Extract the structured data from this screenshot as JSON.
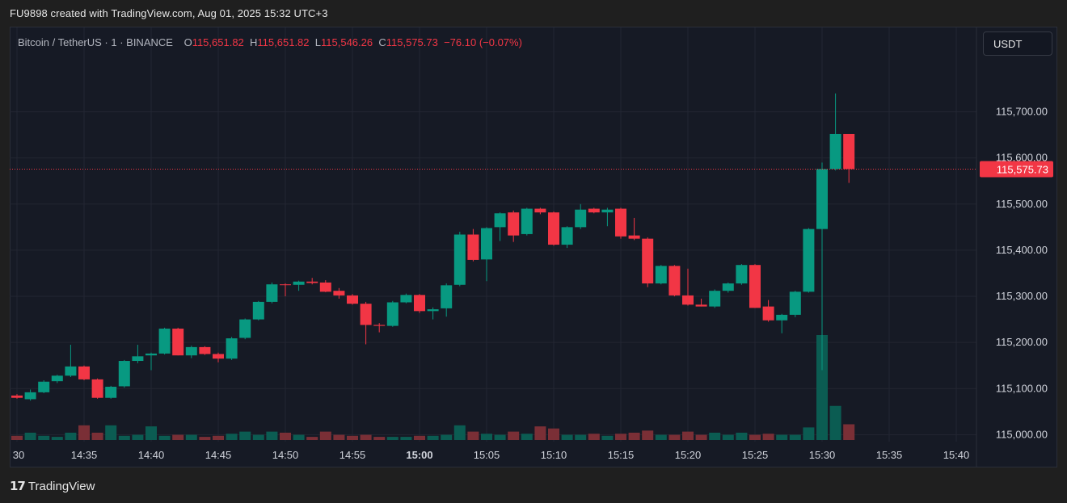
{
  "header": {
    "text": "FU9898 created with TradingView.com, Aug 01, 2025 15:32 UTC+3"
  },
  "legend": {
    "symbol": "Bitcoin / TetherUS · 1 · BINANCE",
    "open_label": "O",
    "open": "115,651.82",
    "high_label": "H",
    "high": "115,651.82",
    "low_label": "L",
    "low": "115,546.26",
    "close_label": "C",
    "close": "115,575.73",
    "change": "−76.10 (−0.07%)"
  },
  "currency_button": {
    "label": "USDT"
  },
  "price_label": {
    "value": "115,575.73"
  },
  "footer": {
    "brand": "TradingView"
  },
  "colors": {
    "up": "#089981",
    "down": "#f23645",
    "up_volume": "#0b5c52",
    "down_volume": "#7a2f36",
    "background": "#161a25",
    "grid": "#232632"
  },
  "chart_data": {
    "type": "candlestick",
    "symbol": "BTCUSDT",
    "interval": "1m",
    "y_ticks": [
      115000,
      115100,
      115200,
      115300,
      115400,
      115500,
      115600,
      115700
    ],
    "y_tick_labels": [
      "115,000.00",
      "115,100.00",
      "115,200.00",
      "115,300.00",
      "115,400.00",
      "115,500.00",
      "115,600.00",
      "115,700.00"
    ],
    "ylim": [
      114985,
      115820
    ],
    "x_ticks": [
      {
        "label": "30",
        "minute": 0,
        "bold": false
      },
      {
        "label": "14:35",
        "minute": 5,
        "bold": false
      },
      {
        "label": "14:40",
        "minute": 10,
        "bold": false
      },
      {
        "label": "14:45",
        "minute": 15,
        "bold": false
      },
      {
        "label": "14:50",
        "minute": 20,
        "bold": false
      },
      {
        "label": "14:55",
        "minute": 25,
        "bold": false
      },
      {
        "label": "15:00",
        "minute": 30,
        "bold": true
      },
      {
        "label": "15:05",
        "minute": 35,
        "bold": false
      },
      {
        "label": "15:10",
        "minute": 40,
        "bold": false
      },
      {
        "label": "15:15",
        "minute": 45,
        "bold": false
      },
      {
        "label": "15:20",
        "minute": 50,
        "bold": false
      },
      {
        "label": "15:25",
        "minute": 55,
        "bold": false
      },
      {
        "label": "15:30",
        "minute": 60,
        "bold": false
      },
      {
        "label": "15:35",
        "minute": 65,
        "bold": false
      },
      {
        "label": "15:40",
        "minute": 70,
        "bold": false
      }
    ],
    "xlim_minutes": [
      0,
      72
    ],
    "last_price": 115575.73,
    "volume_max": 200,
    "candles": [
      {
        "m": 0,
        "o": 115085,
        "h": 115088,
        "l": 115078,
        "c": 115080,
        "v": 8
      },
      {
        "m": 1,
        "o": 115077,
        "h": 115098,
        "l": 115074,
        "c": 115092,
        "v": 14
      },
      {
        "m": 2,
        "o": 115092,
        "h": 115118,
        "l": 115090,
        "c": 115115,
        "v": 8
      },
      {
        "m": 3,
        "o": 115116,
        "h": 115130,
        "l": 115112,
        "c": 115128,
        "v": 6
      },
      {
        "m": 4,
        "o": 115128,
        "h": 115195,
        "l": 115125,
        "c": 115148,
        "v": 14
      },
      {
        "m": 5,
        "o": 115148,
        "h": 115150,
        "l": 115118,
        "c": 115120,
        "v": 28
      },
      {
        "m": 6,
        "o": 115120,
        "h": 115122,
        "l": 115078,
        "c": 115080,
        "v": 14
      },
      {
        "m": 7,
        "o": 115080,
        "h": 115106,
        "l": 115078,
        "c": 115104,
        "v": 28
      },
      {
        "m": 8,
        "o": 115105,
        "h": 115162,
        "l": 115102,
        "c": 115160,
        "v": 8
      },
      {
        "m": 9,
        "o": 115160,
        "h": 115195,
        "l": 115155,
        "c": 115170,
        "v": 10
      },
      {
        "m": 10,
        "o": 115172,
        "h": 115178,
        "l": 115140,
        "c": 115176,
        "v": 26
      },
      {
        "m": 11,
        "o": 115176,
        "h": 115232,
        "l": 115174,
        "c": 115230,
        "v": 8
      },
      {
        "m": 12,
        "o": 115230,
        "h": 115232,
        "l": 115172,
        "c": 115172,
        "v": 10
      },
      {
        "m": 13,
        "o": 115172,
        "h": 115193,
        "l": 115166,
        "c": 115190,
        "v": 10
      },
      {
        "m": 14,
        "o": 115190,
        "h": 115192,
        "l": 115173,
        "c": 115175,
        "v": 6
      },
      {
        "m": 15,
        "o": 115175,
        "h": 115178,
        "l": 115157,
        "c": 115165,
        "v": 8
      },
      {
        "m": 16,
        "o": 115165,
        "h": 115212,
        "l": 115162,
        "c": 115209,
        "v": 12
      },
      {
        "m": 17,
        "o": 115210,
        "h": 115252,
        "l": 115207,
        "c": 115250,
        "v": 16
      },
      {
        "m": 18,
        "o": 115250,
        "h": 115290,
        "l": 115248,
        "c": 115288,
        "v": 10
      },
      {
        "m": 19,
        "o": 115288,
        "h": 115330,
        "l": 115285,
        "c": 115326,
        "v": 16
      },
      {
        "m": 20,
        "o": 115326,
        "h": 115328,
        "l": 115300,
        "c": 115325,
        "v": 14
      },
      {
        "m": 21,
        "o": 115325,
        "h": 115334,
        "l": 115312,
        "c": 115332,
        "v": 10
      },
      {
        "m": 22,
        "o": 115332,
        "h": 115340,
        "l": 115326,
        "c": 115329,
        "v": 6
      },
      {
        "m": 23,
        "o": 115330,
        "h": 115335,
        "l": 115309,
        "c": 115310,
        "v": 16
      },
      {
        "m": 24,
        "o": 115312,
        "h": 115318,
        "l": 115295,
        "c": 115302,
        "v": 10
      },
      {
        "m": 25,
        "o": 115302,
        "h": 115305,
        "l": 115282,
        "c": 115284,
        "v": 8
      },
      {
        "m": 26,
        "o": 115284,
        "h": 115288,
        "l": 115196,
        "c": 115238,
        "v": 10
      },
      {
        "m": 27,
        "o": 115238,
        "h": 115242,
        "l": 115222,
        "c": 115236,
        "v": 6
      },
      {
        "m": 28,
        "o": 115236,
        "h": 115290,
        "l": 115234,
        "c": 115287,
        "v": 6
      },
      {
        "m": 29,
        "o": 115287,
        "h": 115306,
        "l": 115285,
        "c": 115303,
        "v": 6
      },
      {
        "m": 30,
        "o": 115303,
        "h": 115305,
        "l": 115264,
        "c": 115268,
        "v": 8
      },
      {
        "m": 31,
        "o": 115268,
        "h": 115276,
        "l": 115250,
        "c": 115272,
        "v": 8
      },
      {
        "m": 32,
        "o": 115274,
        "h": 115328,
        "l": 115256,
        "c": 115324,
        "v": 10
      },
      {
        "m": 33,
        "o": 115325,
        "h": 115440,
        "l": 115322,
        "c": 115434,
        "v": 28
      },
      {
        "m": 34,
        "o": 115434,
        "h": 115446,
        "l": 115376,
        "c": 115379,
        "v": 16
      },
      {
        "m": 35,
        "o": 115380,
        "h": 115450,
        "l": 115333,
        "c": 115448,
        "v": 12
      },
      {
        "m": 36,
        "o": 115450,
        "h": 115482,
        "l": 115420,
        "c": 115480,
        "v": 10
      },
      {
        "m": 37,
        "o": 115482,
        "h": 115486,
        "l": 115418,
        "c": 115432,
        "v": 16
      },
      {
        "m": 38,
        "o": 115435,
        "h": 115492,
        "l": 115432,
        "c": 115490,
        "v": 12
      },
      {
        "m": 39,
        "o": 115490,
        "h": 115492,
        "l": 115478,
        "c": 115482,
        "v": 26
      },
      {
        "m": 40,
        "o": 115482,
        "h": 115484,
        "l": 115410,
        "c": 115412,
        "v": 22
      },
      {
        "m": 41,
        "o": 115412,
        "h": 115452,
        "l": 115405,
        "c": 115450,
        "v": 10
      },
      {
        "m": 42,
        "o": 115450,
        "h": 115500,
        "l": 115446,
        "c": 115488,
        "v": 10
      },
      {
        "m": 43,
        "o": 115490,
        "h": 115492,
        "l": 115480,
        "c": 115482,
        "v": 12
      },
      {
        "m": 44,
        "o": 115482,
        "h": 115492,
        "l": 115452,
        "c": 115488,
        "v": 8
      },
      {
        "m": 45,
        "o": 115490,
        "h": 115492,
        "l": 115425,
        "c": 115430,
        "v": 12
      },
      {
        "m": 46,
        "o": 115432,
        "h": 115470,
        "l": 115422,
        "c": 115425,
        "v": 14
      },
      {
        "m": 47,
        "o": 115425,
        "h": 115428,
        "l": 115320,
        "c": 115328,
        "v": 18
      },
      {
        "m": 48,
        "o": 115328,
        "h": 115368,
        "l": 115326,
        "c": 115366,
        "v": 10
      },
      {
        "m": 49,
        "o": 115366,
        "h": 115368,
        "l": 115300,
        "c": 115302,
        "v": 10
      },
      {
        "m": 50,
        "o": 115302,
        "h": 115360,
        "l": 115280,
        "c": 115282,
        "v": 16
      },
      {
        "m": 51,
        "o": 115282,
        "h": 115295,
        "l": 115278,
        "c": 115278,
        "v": 10
      },
      {
        "m": 52,
        "o": 115278,
        "h": 115315,
        "l": 115275,
        "c": 115312,
        "v": 14
      },
      {
        "m": 53,
        "o": 115312,
        "h": 115330,
        "l": 115308,
        "c": 115328,
        "v": 10
      },
      {
        "m": 54,
        "o": 115328,
        "h": 115370,
        "l": 115325,
        "c": 115368,
        "v": 14
      },
      {
        "m": 55,
        "o": 115368,
        "h": 115370,
        "l": 115275,
        "c": 115275,
        "v": 10
      },
      {
        "m": 56,
        "o": 115278,
        "h": 115292,
        "l": 115245,
        "c": 115248,
        "v": 12
      },
      {
        "m": 57,
        "o": 115248,
        "h": 115262,
        "l": 115220,
        "c": 115260,
        "v": 10
      },
      {
        "m": 58,
        "o": 115260,
        "h": 115312,
        "l": 115255,
        "c": 115310,
        "v": 10
      },
      {
        "m": 59,
        "o": 115310,
        "h": 115448,
        "l": 115308,
        "c": 115446,
        "v": 24
      },
      {
        "m": 60,
        "o": 115446,
        "h": 115590,
        "l": 115140,
        "c": 115576,
        "v": 200
      },
      {
        "m": 61,
        "o": 115576,
        "h": 115740,
        "l": 115573,
        "c": 115652,
        "v": 65
      },
      {
        "m": 62,
        "o": 115652,
        "h": 115652,
        "l": 115546,
        "c": 115576,
        "v": 30
      }
    ]
  }
}
